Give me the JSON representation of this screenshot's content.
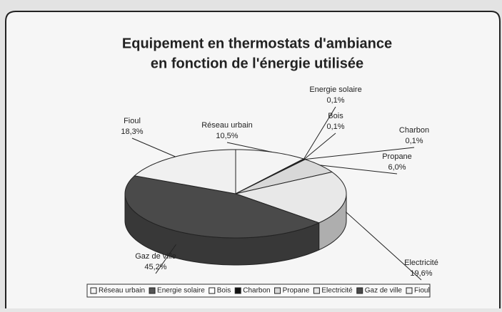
{
  "chart_data": {
    "type": "pie3d",
    "title": [
      "Equipement en thermostats d'ambiance",
      "en fonction de l'énergie utilisée"
    ],
    "categories": [
      "Réseau urbain",
      "Energie solaire",
      "Bois",
      "Charbon",
      "Propane",
      "Electricité",
      "Gaz de ville",
      "Fioul"
    ],
    "values": [
      10.5,
      0.1,
      0.1,
      0.1,
      6.0,
      19.6,
      45.2,
      18.3
    ],
    "value_labels": [
      "10,5%",
      "0,1%",
      "0,1%",
      "0,1%",
      "6,0%",
      "19,6%",
      "45,2%",
      "18,3%"
    ],
    "colors": [
      "#f4f4f4",
      "#555555",
      "#ffffff",
      "#111111",
      "#d8d8d8",
      "#e8e8e8",
      "#4a4a4a",
      "#f0f0f0"
    ],
    "legend": "bottom"
  }
}
